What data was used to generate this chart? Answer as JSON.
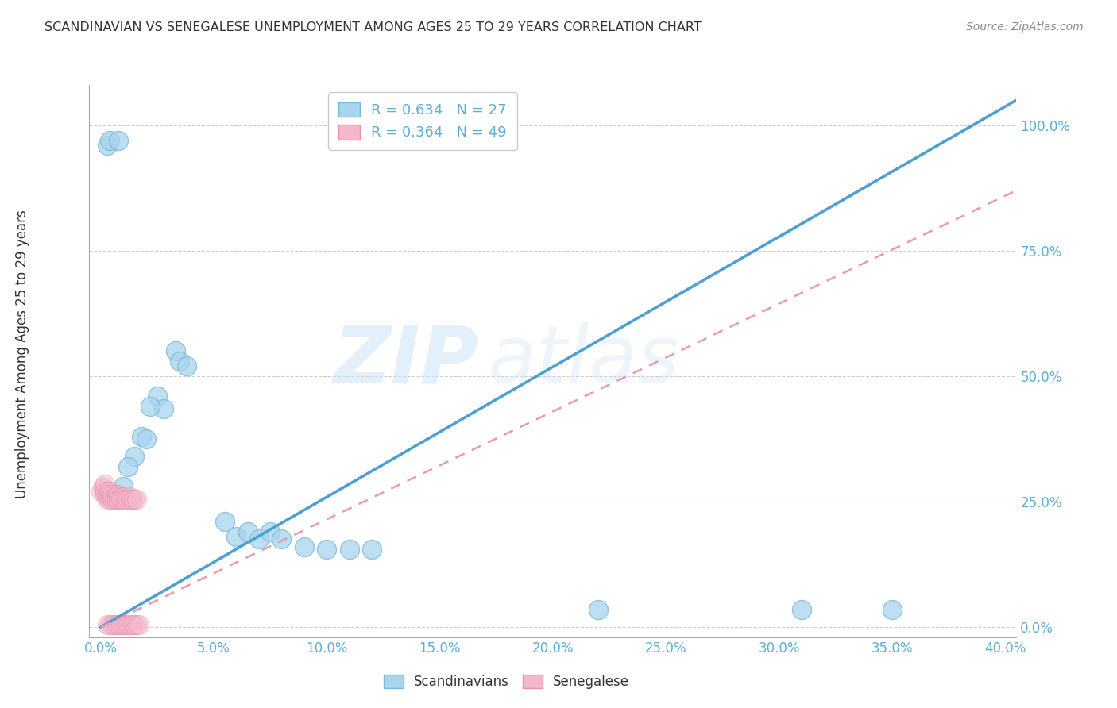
{
  "title": "SCANDINAVIAN VS SENEGALESE UNEMPLOYMENT AMONG AGES 25 TO 29 YEARS CORRELATION CHART",
  "source": "Source: ZipAtlas.com",
  "xlabel_ticks": [
    "0.0%",
    "5.0%",
    "10.0%",
    "15.0%",
    "20.0%",
    "25.0%",
    "30.0%",
    "35.0%",
    "40.0%"
  ],
  "ylabel_ticks": [
    "0.0%",
    "25.0%",
    "50.0%",
    "75.0%",
    "100.0%"
  ],
  "ylabel_label": "Unemployment Among Ages 25 to 29 years",
  "xlim": [
    -0.005,
    0.405
  ],
  "ylim": [
    -0.02,
    1.08
  ],
  "legend1_label": "R = 0.634   N = 27",
  "legend2_label": "R = 0.364   N = 49",
  "watermark_zip": "ZIP",
  "watermark_atlas": "atlas",
  "scandinavian_color": "#a8d4ed",
  "scandinavian_edge": "#7ab8d9",
  "senegalese_color": "#f5b8cb",
  "senegalese_edge": "#e890a8",
  "blue_line_color": "#4a9fd4",
  "pink_line_color": "#e899b0",
  "scandinavian_points": [
    [
      0.003,
      0.96
    ],
    [
      0.004,
      0.97
    ],
    [
      0.008,
      0.97
    ],
    [
      0.033,
      0.55
    ],
    [
      0.035,
      0.53
    ],
    [
      0.038,
      0.52
    ],
    [
      0.025,
      0.46
    ],
    [
      0.028,
      0.435
    ],
    [
      0.022,
      0.44
    ],
    [
      0.018,
      0.38
    ],
    [
      0.02,
      0.375
    ],
    [
      0.015,
      0.34
    ],
    [
      0.012,
      0.32
    ],
    [
      0.01,
      0.28
    ],
    [
      0.055,
      0.21
    ],
    [
      0.06,
      0.18
    ],
    [
      0.065,
      0.19
    ],
    [
      0.07,
      0.175
    ],
    [
      0.075,
      0.19
    ],
    [
      0.08,
      0.175
    ],
    [
      0.09,
      0.16
    ],
    [
      0.1,
      0.155
    ],
    [
      0.11,
      0.155
    ],
    [
      0.12,
      0.155
    ],
    [
      0.22,
      0.035
    ],
    [
      0.31,
      0.035
    ],
    [
      0.35,
      0.035
    ]
  ],
  "senegalese_points": [
    [
      0.0,
      0.27
    ],
    [
      0.001,
      0.275
    ],
    [
      0.001,
      0.28
    ],
    [
      0.002,
      0.285
    ],
    [
      0.002,
      0.265
    ],
    [
      0.002,
      0.27
    ],
    [
      0.003,
      0.27
    ],
    [
      0.003,
      0.265
    ],
    [
      0.003,
      0.26
    ],
    [
      0.003,
      0.255
    ],
    [
      0.004,
      0.265
    ],
    [
      0.004,
      0.27
    ],
    [
      0.004,
      0.255
    ],
    [
      0.005,
      0.26
    ],
    [
      0.005,
      0.255
    ],
    [
      0.005,
      0.265
    ],
    [
      0.006,
      0.26
    ],
    [
      0.006,
      0.255
    ],
    [
      0.007,
      0.265
    ],
    [
      0.007,
      0.26
    ],
    [
      0.007,
      0.255
    ],
    [
      0.008,
      0.265
    ],
    [
      0.008,
      0.255
    ],
    [
      0.009,
      0.26
    ],
    [
      0.009,
      0.255
    ],
    [
      0.01,
      0.26
    ],
    [
      0.01,
      0.255
    ],
    [
      0.011,
      0.255
    ],
    [
      0.012,
      0.255
    ],
    [
      0.013,
      0.255
    ],
    [
      0.013,
      0.26
    ],
    [
      0.014,
      0.255
    ],
    [
      0.015,
      0.255
    ],
    [
      0.016,
      0.255
    ],
    [
      0.003,
      0.005
    ],
    [
      0.004,
      0.005
    ],
    [
      0.005,
      0.005
    ],
    [
      0.006,
      0.005
    ],
    [
      0.007,
      0.005
    ],
    [
      0.008,
      0.005
    ],
    [
      0.009,
      0.005
    ],
    [
      0.01,
      0.005
    ],
    [
      0.011,
      0.005
    ],
    [
      0.012,
      0.005
    ],
    [
      0.013,
      0.005
    ],
    [
      0.014,
      0.005
    ],
    [
      0.015,
      0.005
    ],
    [
      0.016,
      0.005
    ],
    [
      0.017,
      0.005
    ]
  ],
  "blue_line": {
    "x0": 0.0,
    "y0": 0.0,
    "x1": 0.405,
    "y1": 1.05
  },
  "pink_line": {
    "x0": 0.0,
    "y0": 0.0,
    "x1": 0.405,
    "y1": 0.87
  },
  "grid_color": "#c8c8c8",
  "background_color": "#ffffff",
  "tick_color": "#5bafd6",
  "title_color": "#333333",
  "ylabel_color": "#333333"
}
